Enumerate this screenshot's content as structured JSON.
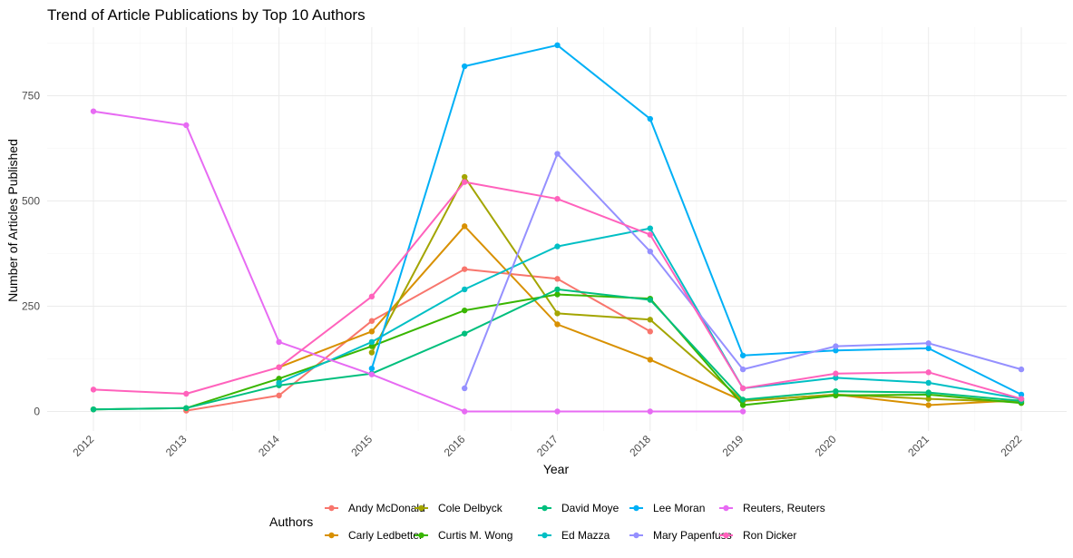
{
  "chart_data": {
    "type": "line",
    "title": "Trend of Article Publications by Top 10 Authors",
    "xlabel": "Year",
    "ylabel": "Number of Articles Published",
    "x": [
      "2012",
      "2013",
      "2014",
      "2015",
      "2016",
      "2017",
      "2018",
      "2019",
      "2020",
      "2021",
      "2022"
    ],
    "ylim": [
      -20,
      900
    ],
    "yticks": [
      0,
      250,
      500,
      750
    ],
    "grid": true,
    "legend": {
      "title": "Authors",
      "position": "bottom"
    },
    "series": [
      {
        "name": "Andy McDonald",
        "color": "#F8766D",
        "values": [
          null,
          2,
          38,
          215,
          338,
          315,
          190,
          null,
          null,
          null,
          null
        ]
      },
      {
        "name": "Carly Ledbetter",
        "color": "#D89000",
        "values": [
          null,
          null,
          105,
          190,
          440,
          207,
          123,
          25,
          40,
          15,
          27
        ]
      },
      {
        "name": "Cole Delbyck",
        "color": "#A3A500",
        "values": [
          null,
          null,
          null,
          140,
          557,
          233,
          218,
          25,
          40,
          30,
          22
        ]
      },
      {
        "name": "Curtis M. Wong",
        "color": "#39B600",
        "values": [
          5,
          8,
          78,
          155,
          240,
          278,
          268,
          15,
          38,
          40,
          20
        ]
      },
      {
        "name": "David Moye",
        "color": "#00BF7D",
        "values": [
          5,
          8,
          62,
          90,
          185,
          290,
          265,
          28,
          48,
          45,
          25
        ]
      },
      {
        "name": "Ed Mazza",
        "color": "#00BFC4",
        "values": [
          null,
          null,
          68,
          165,
          290,
          392,
          435,
          55,
          80,
          68,
          30
        ]
      },
      {
        "name": "Lee Moran",
        "color": "#00B0F6",
        "values": [
          null,
          null,
          null,
          102,
          820,
          870,
          695,
          133,
          145,
          150,
          40
        ]
      },
      {
        "name": "Mary Papenfuss",
        "color": "#9590FF",
        "values": [
          null,
          null,
          null,
          null,
          55,
          612,
          380,
          100,
          155,
          162,
          100
        ]
      },
      {
        "name": "Reuters, Reuters",
        "color": "#E76BF3",
        "values": [
          713,
          680,
          165,
          88,
          0,
          0,
          0,
          0,
          null,
          null,
          null
        ]
      },
      {
        "name": "Ron Dicker",
        "color": "#FF62BC",
        "values": [
          52,
          42,
          105,
          273,
          545,
          505,
          420,
          55,
          90,
          93,
          30
        ]
      }
    ]
  }
}
